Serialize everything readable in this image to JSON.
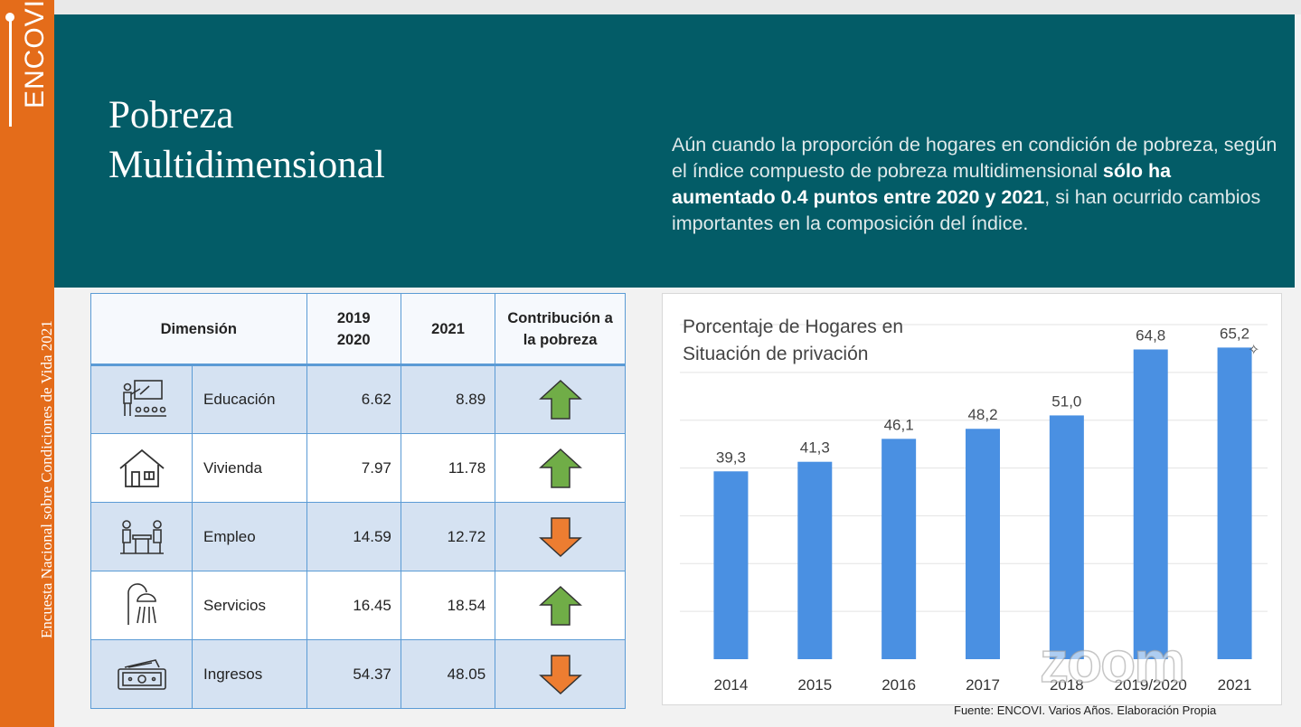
{
  "sidebar": {
    "brand": "ENCOVI",
    "survey_name": "Encuesta Nacional sobre Condiciones de Vida 2021"
  },
  "banner": {
    "title_line1": "Pobreza",
    "title_line2": "Multidimensional",
    "summary_part1": "Aún cuando la proporción de hogares en condición de pobreza, según el índice compuesto de pobreza multidimensional ",
    "summary_bold": "sólo ha aumentado 0.4 puntos entre 2020 y 2021",
    "summary_part2": ", si han ocurrido cambios importantes en la composición del índice."
  },
  "table": {
    "headers": {
      "dimension": "Dimensión",
      "year1_line1": "2019",
      "year1_line2": "2020",
      "year2": "2021",
      "contribution_line1": "Contribución a",
      "contribution_line2": "la pobreza"
    },
    "rows": [
      {
        "icon": "teacher-classroom-icon",
        "dimension": "Educación",
        "v2019_2020": "6.62",
        "v2021": "8.89",
        "trend": "up"
      },
      {
        "icon": "house-icon",
        "dimension": "Vivienda",
        "v2019_2020": "7.97",
        "v2021": "11.78",
        "trend": "up"
      },
      {
        "icon": "people-at-desk-icon",
        "dimension": "Empleo",
        "v2019_2020": "14.59",
        "v2021": "12.72",
        "trend": "down"
      },
      {
        "icon": "shower-icon",
        "dimension": "Servicios",
        "v2019_2020": "16.45",
        "v2021": "18.54",
        "trend": "up"
      },
      {
        "icon": "banknote-icon",
        "dimension": "Ingresos",
        "v2019_2020": "54.37",
        "v2021": "48.05",
        "trend": "down"
      }
    ],
    "colors": {
      "up": "#70ad47",
      "down": "#ed7d31",
      "border": "#5b9bd5"
    }
  },
  "chart_data": {
    "type": "bar",
    "title": "Porcentaje de Hogares en Situación de privación",
    "categories": [
      "2014",
      "2015",
      "2016",
      "2017",
      "2018",
      "2019/2020",
      "2021"
    ],
    "values": [
      39.3,
      41.3,
      46.1,
      48.2,
      51.0,
      64.8,
      65.2
    ],
    "labels": [
      "39,3",
      "41,3",
      "46,1",
      "48,2",
      "51,0",
      "64,8",
      "65,2"
    ],
    "ylim": [
      0,
      70
    ],
    "grid": true,
    "color": "#4a90e2"
  },
  "source": "Fuente: ENCOVI. Varios Años. Elaboración Propia",
  "watermark": "zoom"
}
